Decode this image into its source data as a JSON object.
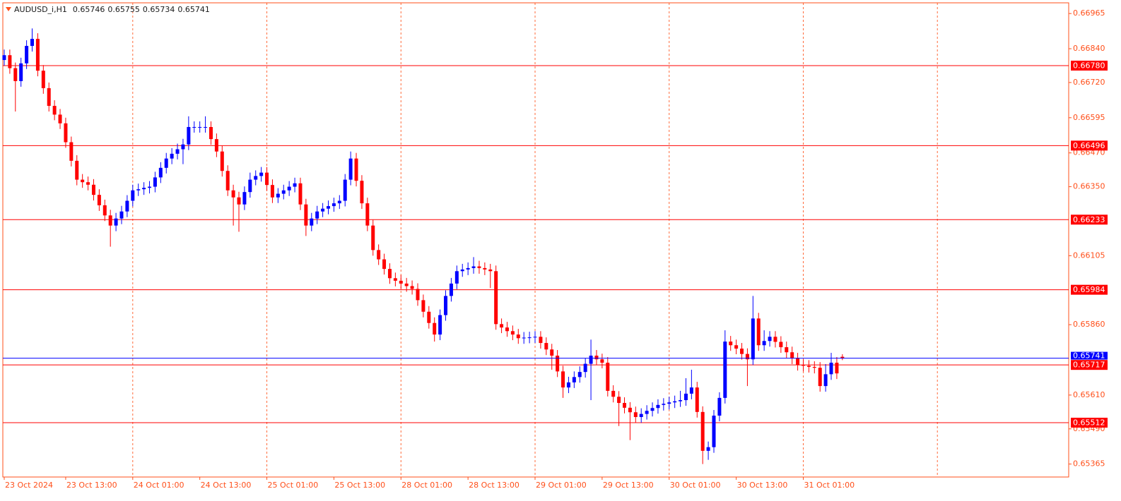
{
  "chart_data": {
    "type": "candlestick",
    "title": "AUDUSD_i,H1",
    "open": [
      0.668,
      0.66817,
      0.66771,
      0.66725,
      0.66788,
      0.6685,
      0.66875,
      0.66762,
      0.667,
      0.66637,
      0.66606,
      0.66575,
      0.66508,
      0.66442,
      0.66375,
      0.66366,
      0.66357,
      0.66321,
      0.66284,
      0.66248,
      0.66212,
      0.66237,
      0.66262,
      0.663,
      0.66337,
      0.66341,
      0.66346,
      0.6635,
      0.66383,
      0.66417,
      0.6645,
      0.66467,
      0.66483,
      0.665,
      0.66562,
      0.66562,
      0.66562,
      0.66562,
      0.66519,
      0.66475,
      0.66406,
      0.66337,
      0.66312,
      0.66287,
      0.66331,
      0.66375,
      0.66388,
      0.664,
      0.66356,
      0.66312,
      0.66325,
      0.66337,
      0.6635,
      0.66362,
      0.66287,
      0.66212,
      0.66237,
      0.66262,
      0.66272,
      0.66281,
      0.66291,
      0.663,
      0.66375,
      0.6645,
      0.66371,
      0.66291,
      0.66212,
      0.66125,
      0.66092,
      0.66058,
      0.66025,
      0.66016,
      0.66006,
      0.65997,
      0.65987,
      0.65947,
      0.65906,
      0.65866,
      0.65825,
      0.65894,
      0.65962,
      0.66006,
      0.6605,
      0.66056,
      0.66061,
      0.66067,
      0.66061,
      0.66056,
      0.6605,
      0.65862,
      0.6585,
      0.65837,
      0.65825,
      0.65812,
      0.65814,
      0.65815,
      0.65817,
      0.65795,
      0.65772,
      0.6575,
      0.65694,
      0.65637,
      0.65655,
      0.65674,
      0.65692,
      0.65721,
      0.6575,
      0.65737,
      0.65725,
      0.65625,
      0.65604,
      0.65582,
      0.65565,
      0.65549,
      0.65532,
      0.65543,
      0.65554,
      0.65564,
      0.65575,
      0.65579,
      0.65584,
      0.65588,
      0.65592,
      0.65615,
      0.65637,
      0.6555,
      0.65412,
      0.65425,
      0.65537,
      0.656,
      0.658,
      0.65787,
      0.65775,
      0.65756,
      0.65737,
      0.65882,
      0.65787,
      0.65802,
      0.65817,
      0.65799,
      0.6578,
      0.65762,
      0.6574,
      0.65717,
      0.65714,
      0.6571,
      0.65707,
      0.65642,
      0.65684,
      0.65725,
      0.65746
    ],
    "high": [
      0.66837,
      0.66837,
      0.66791,
      0.66808,
      0.6687,
      0.66912,
      0.66895,
      0.66782,
      0.6672,
      0.66657,
      0.66626,
      0.66595,
      0.66528,
      0.66462,
      0.66395,
      0.66386,
      0.66377,
      0.66341,
      0.66304,
      0.66268,
      0.66257,
      0.66282,
      0.6632,
      0.66357,
      0.66361,
      0.66366,
      0.6637,
      0.66403,
      0.66437,
      0.6647,
      0.66487,
      0.66503,
      0.6652,
      0.666,
      0.66582,
      0.66582,
      0.666,
      0.66582,
      0.66539,
      0.66495,
      0.66426,
      0.66357,
      0.66332,
      0.66351,
      0.664,
      0.66408,
      0.6642,
      0.6642,
      0.66376,
      0.66345,
      0.66357,
      0.6637,
      0.66382,
      0.66382,
      0.66307,
      0.66257,
      0.66282,
      0.66292,
      0.66301,
      0.66311,
      0.6632,
      0.66395,
      0.66475,
      0.6647,
      0.66391,
      0.66311,
      0.66232,
      0.66145,
      0.66112,
      0.66078,
      0.66045,
      0.66036,
      0.66026,
      0.66017,
      0.66007,
      0.65967,
      0.65926,
      0.65886,
      0.65914,
      0.65982,
      0.66026,
      0.6607,
      0.66076,
      0.66081,
      0.661,
      0.66087,
      0.66081,
      0.66076,
      0.6607,
      0.65882,
      0.6587,
      0.65857,
      0.65845,
      0.65834,
      0.65835,
      0.65837,
      0.65837,
      0.65815,
      0.65792,
      0.6577,
      0.65714,
      0.65675,
      0.65694,
      0.65712,
      0.65741,
      0.65807,
      0.6577,
      0.65757,
      0.65745,
      0.65645,
      0.65624,
      0.65602,
      0.65585,
      0.65569,
      0.65563,
      0.65574,
      0.65584,
      0.65595,
      0.65599,
      0.65604,
      0.65608,
      0.65625,
      0.6567,
      0.657,
      0.65657,
      0.6557,
      0.65445,
      0.65557,
      0.6562,
      0.6584,
      0.6582,
      0.65807,
      0.65795,
      0.65776,
      0.65962,
      0.65902,
      0.6584,
      0.65837,
      0.65837,
      0.65819,
      0.658,
      0.65782,
      0.6576,
      0.65737,
      0.65734,
      0.6573,
      0.65727,
      0.6572,
      0.6576,
      0.65745,
      0.65755
    ],
    "low": [
      0.6678,
      0.66751,
      0.66617,
      0.66705,
      0.66768,
      0.6683,
      0.66742,
      0.6668,
      0.66617,
      0.66586,
      0.66555,
      0.66488,
      0.66422,
      0.66355,
      0.66346,
      0.66337,
      0.66301,
      0.66264,
      0.66228,
      0.66137,
      0.66192,
      0.66217,
      0.66242,
      0.6628,
      0.66317,
      0.66321,
      0.66326,
      0.6633,
      0.66363,
      0.66397,
      0.6643,
      0.66447,
      0.6643,
      0.6648,
      0.66542,
      0.66542,
      0.66542,
      0.66499,
      0.66455,
      0.66386,
      0.66317,
      0.66212,
      0.6619,
      0.66267,
      0.66311,
      0.66355,
      0.66368,
      0.66336,
      0.66292,
      0.66292,
      0.66305,
      0.66317,
      0.6633,
      0.66267,
      0.66175,
      0.66192,
      0.66217,
      0.66242,
      0.66252,
      0.66261,
      0.66271,
      0.6628,
      0.66355,
      0.66351,
      0.66271,
      0.66192,
      0.66105,
      0.66072,
      0.66038,
      0.66005,
      0.65996,
      0.65986,
      0.65977,
      0.65967,
      0.65927,
      0.65886,
      0.65846,
      0.658,
      0.65805,
      0.65874,
      0.65942,
      0.65986,
      0.6603,
      0.66036,
      0.66041,
      0.66041,
      0.66036,
      0.6599,
      0.65842,
      0.6583,
      0.65817,
      0.65805,
      0.65792,
      0.65792,
      0.65794,
      0.65795,
      0.65775,
      0.65752,
      0.657,
      0.65674,
      0.656,
      0.65617,
      0.65635,
      0.65654,
      0.65672,
      0.65592,
      0.65717,
      0.65705,
      0.65605,
      0.65584,
      0.655,
      0.65545,
      0.6545,
      0.65512,
      0.65512,
      0.65523,
      0.65534,
      0.65544,
      0.65555,
      0.65559,
      0.65564,
      0.65568,
      0.65572,
      0.65595,
      0.6553,
      0.65365,
      0.6538,
      0.65405,
      0.65517,
      0.6558,
      0.65767,
      0.65755,
      0.65736,
      0.65642,
      0.65717,
      0.65767,
      0.65767,
      0.65782,
      0.65779,
      0.6576,
      0.65742,
      0.6572,
      0.65697,
      0.65694,
      0.6569,
      0.65687,
      0.65622,
      0.65622,
      0.65664,
      0.65667,
      0.65734
    ],
    "close": [
      0.66817,
      0.66771,
      0.66725,
      0.66788,
      0.6685,
      0.66875,
      0.66762,
      0.667,
      0.66637,
      0.66606,
      0.66575,
      0.66508,
      0.66442,
      0.66375,
      0.66366,
      0.66357,
      0.66321,
      0.66284,
      0.66248,
      0.66212,
      0.66237,
      0.66262,
      0.663,
      0.66337,
      0.66341,
      0.66346,
      0.6635,
      0.66383,
      0.66417,
      0.6645,
      0.66467,
      0.66483,
      0.665,
      0.66562,
      0.66562,
      0.66562,
      0.66562,
      0.66519,
      0.66475,
      0.66406,
      0.66337,
      0.66312,
      0.66287,
      0.66331,
      0.66375,
      0.66388,
      0.664,
      0.66356,
      0.66312,
      0.66325,
      0.66337,
      0.6635,
      0.66362,
      0.66287,
      0.66212,
      0.66237,
      0.66262,
      0.66272,
      0.66281,
      0.66291,
      0.663,
      0.66375,
      0.6645,
      0.66371,
      0.66291,
      0.66212,
      0.66125,
      0.66092,
      0.66058,
      0.66025,
      0.66016,
      0.66006,
      0.65997,
      0.65987,
      0.65947,
      0.65906,
      0.65866,
      0.65825,
      0.65894,
      0.65962,
      0.66006,
      0.6605,
      0.66056,
      0.66061,
      0.66067,
      0.66061,
      0.66056,
      0.6605,
      0.65862,
      0.6585,
      0.65837,
      0.65825,
      0.65812,
      0.65814,
      0.65815,
      0.65817,
      0.65795,
      0.65772,
      0.6575,
      0.65694,
      0.65637,
      0.65655,
      0.65674,
      0.65692,
      0.65721,
      0.6575,
      0.65737,
      0.65725,
      0.65625,
      0.65604,
      0.65582,
      0.65565,
      0.65549,
      0.65532,
      0.65543,
      0.65554,
      0.65564,
      0.65575,
      0.65579,
      0.65584,
      0.65588,
      0.65592,
      0.65615,
      0.65637,
      0.6555,
      0.65412,
      0.65425,
      0.65537,
      0.656,
      0.658,
      0.65787,
      0.65775,
      0.65756,
      0.65737,
      0.65882,
      0.65787,
      0.65802,
      0.65817,
      0.65799,
      0.6578,
      0.65762,
      0.6574,
      0.65717,
      0.65714,
      0.6571,
      0.65707,
      0.65642,
      0.65684,
      0.65725,
      0.65687,
      0.65741
    ],
    "up_color": "#0000ff",
    "down_color": "#ff0000",
    "xlim": [
      -0.25,
      190.5
    ],
    "xticks": [
      {
        "value": 0,
        "label": "23 Oct 2024"
      },
      {
        "value": 11,
        "label": "23 Oct 13:00"
      },
      {
        "value": 23,
        "label": "24 Oct 01:00"
      },
      {
        "value": 35,
        "label": "24 Oct 13:00"
      },
      {
        "value": 47,
        "label": "25 Oct 01:00"
      },
      {
        "value": 59,
        "label": "25 Oct 13:00"
      },
      {
        "value": 71,
        "label": "28 Oct 01:00"
      },
      {
        "value": 83,
        "label": "28 Oct 13:00"
      },
      {
        "value": 95,
        "label": "29 Oct 01:00"
      },
      {
        "value": 107,
        "label": "29 Oct 13:00"
      },
      {
        "value": 119,
        "label": "30 Oct 01:00"
      },
      {
        "value": 131,
        "label": "30 Oct 13:00"
      },
      {
        "value": 143,
        "label": "31 Oct 01:00"
      }
    ],
    "xgrid": [
      23,
      47,
      71,
      95,
      119,
      143,
      167
    ],
    "ylim": [
      0.65319,
      0.67003
    ],
    "yticks": [
      0.66965,
      {
        "value": 0.6684,
        "label": "0.66840"
      },
      {
        "value": 0.6672,
        "label": "0.66720"
      },
      0.66595,
      {
        "value": 0.6647,
        "label": "0.66470"
      },
      {
        "value": 0.6635,
        "label": "0.66350"
      },
      0.66105,
      {
        "value": 0.6586,
        "label": "0.65860"
      },
      {
        "value": 0.6561,
        "label": "0.65610"
      },
      {
        "value": 0.6549,
        "label": "0.65490"
      },
      0.65365
    ],
    "levels": [
      {
        "value": 0.6678,
        "label": "0.66780"
      },
      0.66496,
      0.66233,
      0.65984,
      0.65717,
      0.65512
    ],
    "level_color": "#ff0000",
    "bid_color": "#0000ff",
    "axis_color": "#ff4f1a",
    "grid_color": "#ff6a3a"
  }
}
